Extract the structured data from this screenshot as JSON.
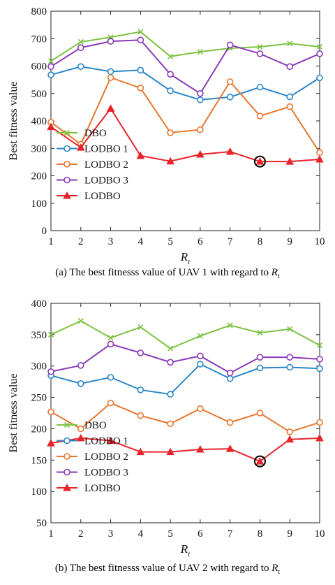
{
  "chart_data": [
    {
      "type": "line",
      "caption_prefix": "(a) The best fitnesss value of UAV 1 with regard to ",
      "caption_var": "R",
      "caption_sub": "t",
      "xlabel": "R",
      "xlabel_sub": "t",
      "ylabel": "Best fitness value",
      "x": [
        1,
        2,
        3,
        4,
        5,
        6,
        7,
        8,
        9,
        10
      ],
      "xlim": [
        1,
        10
      ],
      "ylim": [
        0,
        800
      ],
      "yticks": [
        0,
        100,
        200,
        300,
        400,
        500,
        600,
        700,
        800
      ],
      "legend_position": "bottom-left",
      "series": [
        {
          "name": "DBO",
          "color": "#7cc242",
          "marker": "x",
          "values": [
            618,
            688,
            705,
            725,
            635,
            652,
            665,
            670,
            682,
            670
          ]
        },
        {
          "name": "LODBO 1",
          "color": "#2a86c8",
          "marker": "circle",
          "values": [
            568,
            598,
            580,
            585,
            510,
            477,
            487,
            523,
            488,
            557
          ]
        },
        {
          "name": "LODBO 2",
          "color": "#e8762d",
          "marker": "circle",
          "values": [
            395,
            315,
            558,
            520,
            357,
            368,
            543,
            418,
            452,
            285
          ]
        },
        {
          "name": "LODBO 3",
          "color": "#8a3ab9",
          "marker": "circle",
          "values": [
            598,
            667,
            690,
            695,
            570,
            500,
            677,
            645,
            598,
            645
          ]
        },
        {
          "name": "LODBO",
          "color": "#e8232a",
          "marker": "triangle",
          "values": [
            378,
            303,
            445,
            273,
            253,
            278,
            288,
            252,
            252,
            260
          ]
        }
      ],
      "highlight": {
        "x": 8,
        "y": 252
      }
    },
    {
      "type": "line",
      "caption_prefix": "(b) The best fitnesss value of UAV 2 with regard to ",
      "caption_var": "R",
      "caption_sub": "t",
      "xlabel": "R",
      "xlabel_sub": "t",
      "ylabel": "Best fitness value",
      "x": [
        1,
        2,
        3,
        4,
        5,
        6,
        7,
        8,
        9,
        10
      ],
      "xlim": [
        1,
        10
      ],
      "ylim": [
        50,
        400
      ],
      "yticks": [
        50,
        100,
        150,
        200,
        250,
        300,
        350,
        400
      ],
      "legend_position": "bottom-left",
      "series": [
        {
          "name": "DBO",
          "color": "#7cc242",
          "marker": "x",
          "values": [
            350,
            372,
            345,
            362,
            328,
            348,
            365,
            353,
            359,
            333
          ]
        },
        {
          "name": "LODBO 1",
          "color": "#2a86c8",
          "marker": "circle",
          "values": [
            285,
            272,
            282,
            262,
            255,
            303,
            280,
            297,
            298,
            296
          ]
        },
        {
          "name": "LODBO 2",
          "color": "#e8762d",
          "marker": "circle",
          "values": [
            227,
            200,
            241,
            221,
            208,
            232,
            210,
            225,
            195,
            210
          ]
        },
        {
          "name": "LODBO 3",
          "color": "#8a3ab9",
          "marker": "circle",
          "values": [
            291,
            301,
            335,
            321,
            306,
            316,
            289,
            314,
            314,
            311
          ]
        },
        {
          "name": "LODBO",
          "color": "#e8232a",
          "marker": "triangle",
          "values": [
            177,
            185,
            181,
            163,
            163,
            167,
            168,
            148,
            183,
            185
          ]
        }
      ],
      "highlight": {
        "x": 8,
        "y": 148
      }
    }
  ]
}
